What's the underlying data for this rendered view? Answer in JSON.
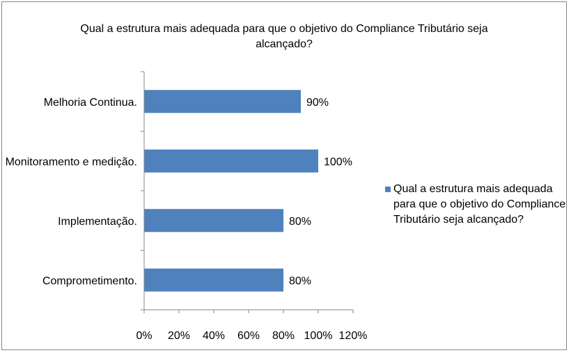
{
  "chart_data": {
    "type": "bar",
    "orientation": "horizontal",
    "title": "Qual a estrutura mais adequada para que o objetivo do Compliance Tributário seja alcançado?",
    "categories": [
      "Comprometimento.",
      "Implementação.",
      "Monitoramento e medição.",
      "Melhoria Continua."
    ],
    "series": [
      {
        "name": "Qual a estrutura mais adequada para que o objetivo do Compliance Tributário seja alcançado?",
        "values": [
          80,
          80,
          100,
          90
        ],
        "labels": [
          "80%",
          "80%",
          "100%",
          "90%"
        ]
      }
    ],
    "xlim": [
      0,
      120
    ],
    "xticks": [
      0,
      20,
      40,
      60,
      80,
      100,
      120
    ],
    "xtick_labels": [
      "0%",
      "20%",
      "40%",
      "60%",
      "80%",
      "100%",
      "120%"
    ],
    "grid": false,
    "legend_position": "right",
    "bar_color": "#4F81BD"
  }
}
